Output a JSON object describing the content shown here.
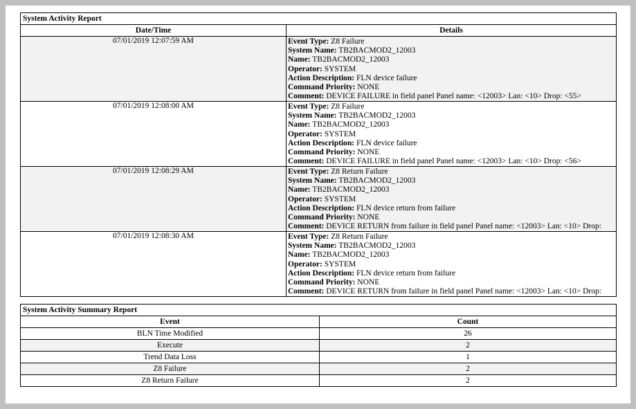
{
  "activity_report": {
    "title": "System Activity Report",
    "columns": [
      "Date/Time",
      "Details"
    ],
    "rows": [
      {
        "datetime": "07/01/2019 12:07:59 AM",
        "details": [
          [
            "Event Type:",
            "Z8 Failure"
          ],
          [
            "System Name:",
            "TB2BACMOD2_12003"
          ],
          [
            "Name:",
            "TB2BACMOD2_12003"
          ],
          [
            "Operator:",
            "SYSTEM"
          ],
          [
            "Action Description:",
            "FLN device failure"
          ],
          [
            "Command Priority:",
            "NONE"
          ],
          [
            "Comment:",
            "DEVICE FAILURE in field panel Panel name: <12003> Lan: <10> Drop: <55>"
          ]
        ]
      },
      {
        "datetime": "07/01/2019 12:08:00 AM",
        "details": [
          [
            "Event Type:",
            "Z8 Failure"
          ],
          [
            "System Name:",
            "TB2BACMOD2_12003"
          ],
          [
            "Name:",
            "TB2BACMOD2_12003"
          ],
          [
            "Operator:",
            "SYSTEM"
          ],
          [
            "Action Description:",
            "FLN device failure"
          ],
          [
            "Command Priority:",
            "NONE"
          ],
          [
            "Comment:",
            "DEVICE FAILURE in field panel Panel name: <12003> Lan: <10> Drop: <56>"
          ]
        ]
      },
      {
        "datetime": "07/01/2019 12:08:29 AM",
        "details": [
          [
            "Event Type:",
            "Z8 Return Failure"
          ],
          [
            "System Name:",
            "TB2BACMOD2_12003"
          ],
          [
            "Name:",
            "TB2BACMOD2_12003"
          ],
          [
            "Operator:",
            "SYSTEM"
          ],
          [
            "Action Description:",
            "FLN device return from failure"
          ],
          [
            "Command Priority:",
            "NONE"
          ],
          [
            "Comment:",
            "DEVICE RETURN from failure in field panel Panel name: <12003> Lan: <10> Drop:"
          ]
        ]
      },
      {
        "datetime": "07/01/2019 12:08:30 AM",
        "details": [
          [
            "Event Type:",
            "Z8 Return Failure"
          ],
          [
            "System Name:",
            "TB2BACMOD2_12003"
          ],
          [
            "Name:",
            "TB2BACMOD2_12003"
          ],
          [
            "Operator:",
            "SYSTEM"
          ],
          [
            "Action Description:",
            "FLN device return from failure"
          ],
          [
            "Command Priority:",
            "NONE"
          ],
          [
            "Comment:",
            "DEVICE RETURN from failure in field panel Panel name: <12003> Lan: <10> Drop:"
          ]
        ]
      }
    ]
  },
  "summary_report": {
    "title": "System Activity Summary Report",
    "columns": [
      "Event",
      "Count"
    ],
    "rows": [
      {
        "event": "BLN Time Modified",
        "count": "26"
      },
      {
        "event": "Execute",
        "count": "2"
      },
      {
        "event": "Trend Data Loss",
        "count": "1"
      },
      {
        "event": "Z8 Failure",
        "count": "2"
      },
      {
        "event": "Z8 Return Failure",
        "count": "2"
      }
    ]
  },
  "colors": {
    "background": "#c0c0c0",
    "alt_row": "#f2f2f2"
  }
}
